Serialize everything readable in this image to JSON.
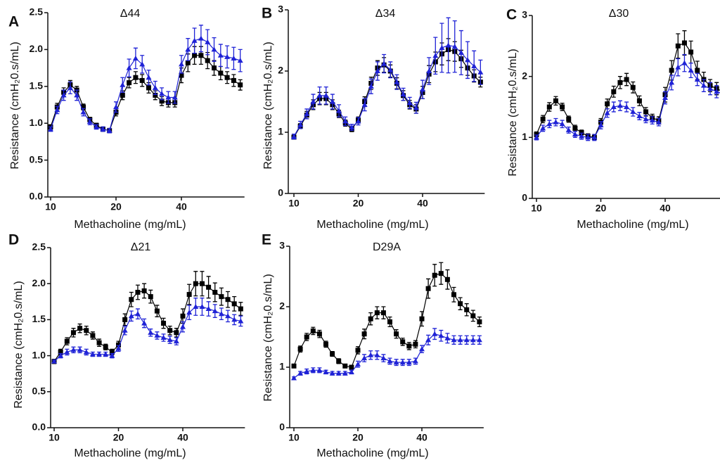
{
  "chart_data": [
    {
      "type": "line",
      "panel_label": "A",
      "title": "Δ44",
      "xlabel": "Methacholine (mg/mL)",
      "ylabel": "Resistance (cmH₂0.s/mL)",
      "categories": [
        "10",
        null,
        null,
        null,
        null,
        null,
        null,
        null,
        null,
        null,
        "20",
        null,
        null,
        null,
        null,
        null,
        null,
        null,
        null,
        null,
        "40",
        null,
        null,
        null,
        null,
        null,
        null,
        null,
        null,
        null
      ],
      "ylim": [
        0,
        2.5
      ],
      "yticks": [
        {
          "value": 0,
          "label": "0.0"
        },
        0.5,
        {
          "value": 1,
          "label": "1.0"
        },
        1.5,
        {
          "value": 2,
          "label": "2.0"
        },
        2.5
      ],
      "series": [
        {
          "color": "#000000",
          "marker": "square",
          "values": [
            0.95,
            1.22,
            1.42,
            1.52,
            1.45,
            1.22,
            1.05,
            0.97,
            0.92,
            0.9,
            1.15,
            1.38,
            1.55,
            1.62,
            1.58,
            1.48,
            1.38,
            1.3,
            1.28,
            1.28,
            1.65,
            1.82,
            1.92,
            1.92,
            1.85,
            1.75,
            1.68,
            1.62,
            1.58,
            1.52
          ],
          "errors": [
            0.03,
            0.05,
            0.06,
            0.06,
            0.05,
            0.04,
            0.03,
            0.03,
            0.03,
            0.03,
            0.05,
            0.06,
            0.07,
            0.08,
            0.08,
            0.07,
            0.06,
            0.06,
            0.06,
            0.06,
            0.1,
            0.12,
            0.12,
            0.12,
            0.11,
            0.1,
            0.09,
            0.08,
            0.08,
            0.07
          ]
        },
        {
          "color": "#1f22d6",
          "marker": "triangle",
          "values": [
            0.92,
            1.18,
            1.38,
            1.48,
            1.38,
            1.15,
            1.02,
            0.95,
            0.92,
            0.9,
            1.22,
            1.52,
            1.75,
            1.88,
            1.8,
            1.62,
            1.48,
            1.4,
            1.35,
            1.35,
            1.8,
            2.0,
            2.12,
            2.15,
            2.1,
            2.0,
            1.92,
            1.9,
            1.88,
            1.85
          ],
          "errors": [
            0.03,
            0.05,
            0.07,
            0.08,
            0.07,
            0.05,
            0.04,
            0.03,
            0.03,
            0.03,
            0.07,
            0.1,
            0.12,
            0.14,
            0.12,
            0.1,
            0.09,
            0.08,
            0.08,
            0.08,
            0.12,
            0.15,
            0.17,
            0.18,
            0.17,
            0.16,
            0.15,
            0.15,
            0.15,
            0.15
          ]
        }
      ]
    },
    {
      "type": "line",
      "panel_label": "B",
      "title": "Δ34",
      "xlabel": "Methacholine (mg/mL)",
      "ylabel": "Resistance (cmH₂0.s/mL)",
      "categories": [
        "10",
        null,
        null,
        null,
        null,
        null,
        null,
        null,
        null,
        null,
        "20",
        null,
        null,
        null,
        null,
        null,
        null,
        null,
        null,
        null,
        "40",
        null,
        null,
        null,
        null,
        null,
        null,
        null,
        null,
        null
      ],
      "ylim": [
        0,
        3
      ],
      "yticks": [
        0,
        1,
        2,
        3
      ],
      "series": [
        {
          "color": "#000000",
          "marker": "square",
          "values": [
            0.92,
            1.1,
            1.28,
            1.45,
            1.55,
            1.55,
            1.45,
            1.3,
            1.15,
            1.05,
            1.2,
            1.5,
            1.8,
            2.05,
            2.1,
            2.0,
            1.8,
            1.6,
            1.45,
            1.38,
            1.65,
            1.95,
            2.15,
            2.28,
            2.35,
            2.32,
            2.2,
            2.05,
            1.92,
            1.82
          ],
          "errors": [
            0.03,
            0.04,
            0.06,
            0.08,
            0.1,
            0.1,
            0.08,
            0.06,
            0.05,
            0.04,
            0.05,
            0.08,
            0.1,
            0.12,
            0.12,
            0.1,
            0.09,
            0.08,
            0.07,
            0.07,
            0.1,
            0.14,
            0.16,
            0.18,
            0.18,
            0.16,
            0.14,
            0.12,
            0.1,
            0.08
          ]
        },
        {
          "color": "#1f22d6",
          "marker": "triangle",
          "values": [
            0.93,
            1.12,
            1.3,
            1.5,
            1.6,
            1.6,
            1.5,
            1.35,
            1.18,
            1.08,
            1.18,
            1.45,
            1.75,
            2.0,
            2.12,
            2.02,
            1.82,
            1.62,
            1.48,
            1.4,
            1.7,
            2.0,
            2.25,
            2.38,
            2.42,
            2.4,
            2.3,
            2.18,
            2.08,
            1.98
          ],
          "errors": [
            0.04,
            0.06,
            0.08,
            0.12,
            0.14,
            0.14,
            0.12,
            0.1,
            0.07,
            0.05,
            0.06,
            0.1,
            0.12,
            0.15,
            0.15,
            0.13,
            0.12,
            0.1,
            0.09,
            0.09,
            0.15,
            0.22,
            0.3,
            0.4,
            0.45,
            0.42,
            0.36,
            0.3,
            0.25,
            0.2
          ]
        }
      ]
    },
    {
      "type": "line",
      "panel_label": "C",
      "title": "Δ30",
      "xlabel": "Methacholine (mg/mL)",
      "ylabel": "Resistance (cmH₂0.s/mL)",
      "categories": [
        "10",
        null,
        null,
        null,
        null,
        null,
        null,
        null,
        null,
        null,
        "20",
        null,
        null,
        null,
        null,
        null,
        null,
        null,
        null,
        null,
        "40",
        null,
        null,
        null,
        null,
        null,
        null,
        null,
        null,
        null
      ],
      "ylim": [
        0,
        3
      ],
      "yticks": [
        0,
        1,
        2,
        3
      ],
      "series": [
        {
          "color": "#000000",
          "marker": "square",
          "values": [
            1.05,
            1.3,
            1.5,
            1.6,
            1.5,
            1.3,
            1.15,
            1.08,
            1.02,
            1.0,
            1.25,
            1.55,
            1.75,
            1.9,
            1.95,
            1.82,
            1.6,
            1.42,
            1.32,
            1.28,
            1.7,
            2.1,
            2.5,
            2.55,
            2.4,
            2.1,
            1.95,
            1.85,
            1.8,
            1.75
          ],
          "errors": [
            0.04,
            0.06,
            0.07,
            0.07,
            0.06,
            0.05,
            0.05,
            0.04,
            0.04,
            0.04,
            0.06,
            0.08,
            0.09,
            0.1,
            0.1,
            0.09,
            0.08,
            0.07,
            0.06,
            0.06,
            0.12,
            0.16,
            0.2,
            0.2,
            0.18,
            0.15,
            0.12,
            0.1,
            0.1,
            0.1
          ]
        },
        {
          "color": "#1f22d6",
          "marker": "triangle",
          "values": [
            1.0,
            1.15,
            1.22,
            1.25,
            1.22,
            1.12,
            1.05,
            1.02,
            1.0,
            1.0,
            1.2,
            1.4,
            1.5,
            1.52,
            1.5,
            1.42,
            1.35,
            1.3,
            1.28,
            1.25,
            1.65,
            1.9,
            2.15,
            2.22,
            2.1,
            1.95,
            1.85,
            1.8,
            1.75,
            1.72
          ],
          "errors": [
            0.04,
            0.05,
            0.06,
            0.06,
            0.06,
            0.05,
            0.05,
            0.05,
            0.05,
            0.05,
            0.06,
            0.07,
            0.08,
            0.08,
            0.08,
            0.07,
            0.06,
            0.06,
            0.06,
            0.06,
            0.1,
            0.12,
            0.14,
            0.14,
            0.12,
            0.1,
            0.1,
            0.1,
            0.1,
            0.1
          ]
        }
      ]
    },
    {
      "type": "line",
      "panel_label": "D",
      "title": "Δ21",
      "xlabel": "Methacholine (mg/mL)",
      "ylabel": "Resistance (cmH₂0.s/mL)",
      "categories": [
        "10",
        null,
        null,
        null,
        null,
        null,
        null,
        null,
        null,
        null,
        "20",
        null,
        null,
        null,
        null,
        null,
        null,
        null,
        null,
        null,
        "40",
        null,
        null,
        null,
        null,
        null,
        null,
        null,
        null,
        null
      ],
      "ylim": [
        0,
        2.5
      ],
      "yticks": [
        {
          "value": 0,
          "label": "0.0"
        },
        0.5,
        {
          "value": 1,
          "label": "1.0"
        },
        1.5,
        {
          "value": 2,
          "label": "2.0"
        },
        2.5
      ],
      "series": [
        {
          "color": "#000000",
          "marker": "square",
          "values": [
            0.92,
            1.05,
            1.2,
            1.32,
            1.38,
            1.35,
            1.28,
            1.18,
            1.12,
            1.05,
            1.15,
            1.5,
            1.78,
            1.88,
            1.9,
            1.82,
            1.62,
            1.45,
            1.35,
            1.32,
            1.55,
            1.85,
            2.0,
            2.0,
            1.95,
            1.88,
            1.82,
            1.78,
            1.72,
            1.65
          ],
          "errors": [
            0.03,
            0.04,
            0.05,
            0.06,
            0.06,
            0.06,
            0.05,
            0.05,
            0.04,
            0.04,
            0.05,
            0.08,
            0.1,
            0.1,
            0.1,
            0.09,
            0.08,
            0.07,
            0.06,
            0.06,
            0.1,
            0.14,
            0.17,
            0.17,
            0.15,
            0.13,
            0.12,
            0.11,
            0.1,
            0.09
          ]
        },
        {
          "color": "#1f22d6",
          "marker": "triangle",
          "values": [
            0.92,
            1.0,
            1.05,
            1.08,
            1.08,
            1.05,
            1.02,
            1.02,
            1.02,
            1.0,
            1.1,
            1.35,
            1.55,
            1.58,
            1.45,
            1.32,
            1.28,
            1.25,
            1.22,
            1.2,
            1.4,
            1.6,
            1.68,
            1.68,
            1.65,
            1.62,
            1.58,
            1.55,
            1.5,
            1.48
          ],
          "errors": [
            0.02,
            0.03,
            0.04,
            0.04,
            0.04,
            0.04,
            0.03,
            0.03,
            0.03,
            0.03,
            0.04,
            0.06,
            0.07,
            0.07,
            0.06,
            0.05,
            0.05,
            0.05,
            0.05,
            0.05,
            0.07,
            0.1,
            0.12,
            0.12,
            0.1,
            0.09,
            0.08,
            0.08,
            0.07,
            0.07
          ]
        }
      ]
    },
    {
      "type": "line",
      "panel_label": "E",
      "title": "D29A",
      "xlabel": "Methacholine (mg/mL)",
      "ylabel": "Resistance (cmH₂0.s/mL)",
      "categories": [
        "10",
        null,
        null,
        null,
        null,
        null,
        null,
        null,
        null,
        null,
        "20",
        null,
        null,
        null,
        null,
        null,
        null,
        null,
        null,
        null,
        "40",
        null,
        null,
        null,
        null,
        null,
        null,
        null,
        null,
        null
      ],
      "ylim": [
        0,
        3
      ],
      "yticks": [
        0,
        1,
        2,
        3
      ],
      "series": [
        {
          "color": "#000000",
          "marker": "square",
          "values": [
            1.02,
            1.3,
            1.5,
            1.6,
            1.55,
            1.38,
            1.22,
            1.1,
            1.02,
            1.0,
            1.28,
            1.55,
            1.8,
            1.9,
            1.9,
            1.75,
            1.55,
            1.42,
            1.35,
            1.38,
            1.8,
            2.3,
            2.52,
            2.55,
            2.45,
            2.2,
            2.05,
            1.95,
            1.85,
            1.75
          ],
          "errors": [
            0.03,
            0.05,
            0.06,
            0.06,
            0.06,
            0.05,
            0.04,
            0.04,
            0.03,
            0.03,
            0.06,
            0.08,
            0.1,
            0.1,
            0.1,
            0.08,
            0.07,
            0.06,
            0.06,
            0.06,
            0.12,
            0.16,
            0.18,
            0.18,
            0.16,
            0.12,
            0.1,
            0.1,
            0.09,
            0.08
          ]
        },
        {
          "color": "#1f22d6",
          "marker": "triangle",
          "values": [
            0.82,
            0.9,
            0.93,
            0.95,
            0.95,
            0.92,
            0.9,
            0.9,
            0.9,
            0.92,
            1.05,
            1.15,
            1.2,
            1.2,
            1.15,
            1.1,
            1.08,
            1.08,
            1.08,
            1.1,
            1.3,
            1.45,
            1.55,
            1.52,
            1.48,
            1.45,
            1.45,
            1.45,
            1.45,
            1.45
          ],
          "errors": [
            0.02,
            0.03,
            0.04,
            0.04,
            0.04,
            0.03,
            0.03,
            0.03,
            0.03,
            0.03,
            0.05,
            0.06,
            0.07,
            0.07,
            0.06,
            0.05,
            0.05,
            0.05,
            0.05,
            0.05,
            0.06,
            0.08,
            0.09,
            0.09,
            0.08,
            0.07,
            0.07,
            0.07,
            0.07,
            0.07
          ]
        }
      ]
    }
  ]
}
